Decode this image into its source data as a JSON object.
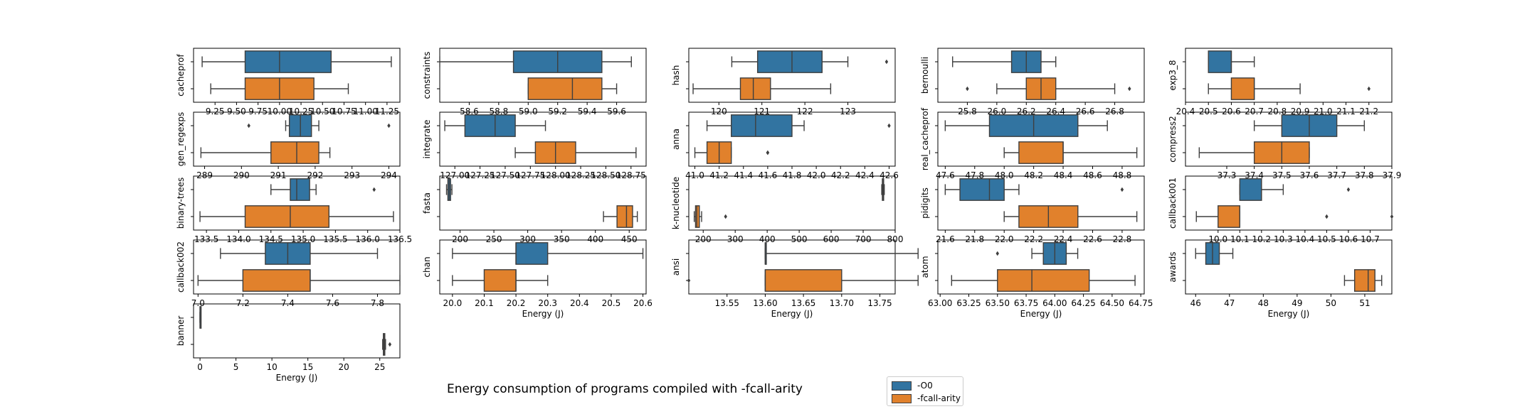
{
  "figure": {
    "title": "Energy consumption of programs compiled with -fcall-arity",
    "legend": [
      {
        "label": "-O0",
        "color": "#3274a1"
      },
      {
        "label": "-fcall-arity",
        "color": "#e1812c"
      }
    ]
  },
  "chart_data": [
    {
      "type": "box",
      "ylabel": "cacheprof",
      "xlabel": "",
      "xlim": [
        9.0,
        11.4
      ],
      "ticks": [
        "9.25",
        "9.50",
        "9.75",
        "10.00",
        "10.25",
        "10.50",
        "10.75",
        "11.00",
        "11.25"
      ],
      "tickvals": [
        9.25,
        9.5,
        9.75,
        10.0,
        10.25,
        10.5,
        10.75,
        11.0,
        11.25
      ],
      "series": [
        {
          "name": "-O0",
          "whislo": 9.1,
          "q1": 9.6,
          "med": 10.0,
          "q3": 10.6,
          "whishi": 11.3,
          "fliers": []
        },
        {
          "name": "-fcall-arity",
          "whislo": 9.2,
          "q1": 9.6,
          "med": 10.0,
          "q3": 10.4,
          "whishi": 10.8,
          "fliers": []
        }
      ]
    },
    {
      "type": "box",
      "ylabel": "constraints",
      "xlabel": "",
      "xlim": [
        58.4,
        59.8
      ],
      "ticks": [
        "58.6",
        "58.8",
        "59.0",
        "59.2",
        "59.4",
        "59.6"
      ],
      "tickvals": [
        58.6,
        58.8,
        59.0,
        59.2,
        59.4,
        59.6
      ],
      "series": [
        {
          "name": "-O0",
          "whislo": 58.4,
          "q1": 58.9,
          "med": 59.2,
          "q3": 59.5,
          "whishi": 59.7,
          "fliers": []
        },
        {
          "name": "-fcall-arity",
          "whislo": 59.0,
          "q1": 59.0,
          "med": 59.3,
          "q3": 59.5,
          "whishi": 59.6,
          "fliers": []
        }
      ]
    },
    {
      "type": "box",
      "ylabel": "hash",
      "xlabel": "",
      "xlim": [
        119.3,
        124.1
      ],
      "ticks": [
        "120",
        "121",
        "122",
        "123"
      ],
      "tickvals": [
        120,
        121,
        122,
        123
      ],
      "series": [
        {
          "name": "-O0",
          "whislo": 120.3,
          "q1": 120.9,
          "med": 121.7,
          "q3": 122.4,
          "whishi": 123.0,
          "fliers": [
            123.9
          ]
        },
        {
          "name": "-fcall-arity",
          "whislo": 119.4,
          "q1": 120.5,
          "med": 120.8,
          "q3": 121.2,
          "whishi": 122.6,
          "fliers": []
        }
      ]
    },
    {
      "type": "box",
      "ylabel": "bernoulli",
      "xlabel": "",
      "xlim": [
        25.6,
        27.0
      ],
      "ticks": [
        "25.8",
        "26.0",
        "26.2",
        "26.4",
        "26.6",
        "26.8"
      ],
      "tickvals": [
        25.8,
        26.0,
        26.2,
        26.4,
        26.6,
        26.8
      ],
      "series": [
        {
          "name": "-O0",
          "whislo": 25.7,
          "q1": 26.1,
          "med": 26.2,
          "q3": 26.3,
          "whishi": 26.4,
          "fliers": []
        },
        {
          "name": "-fcall-arity",
          "whislo": 26.0,
          "q1": 26.2,
          "med": 26.3,
          "q3": 26.4,
          "whishi": 26.8,
          "fliers": [
            25.8,
            26.9
          ]
        }
      ]
    },
    {
      "type": "box",
      "ylabel": "exp3_8",
      "xlabel": "",
      "xlim": [
        20.4,
        21.3
      ],
      "ticks": [
        "20.4",
        "20.5",
        "20.6",
        "20.7",
        "20.8",
        "20.9",
        "21.0",
        "21.1",
        "21.2"
      ],
      "tickvals": [
        20.4,
        20.5,
        20.6,
        20.7,
        20.8,
        20.9,
        21.0,
        21.1,
        21.2
      ],
      "series": [
        {
          "name": "-O0",
          "whislo": 20.5,
          "q1": 20.5,
          "med": 20.6,
          "q3": 20.6,
          "whishi": 20.7,
          "fliers": []
        },
        {
          "name": "-fcall-arity",
          "whislo": 20.5,
          "q1": 20.6,
          "med": 20.7,
          "q3": 20.7,
          "whishi": 20.9,
          "fliers": [
            21.2
          ]
        }
      ]
    },
    {
      "type": "box",
      "ylabel": "gen_regexps",
      "xlabel": "",
      "xlim": [
        288.7,
        294.3
      ],
      "ticks": [
        "289",
        "290",
        "291",
        "292",
        "293",
        "294"
      ],
      "tickvals": [
        289,
        290,
        291,
        292,
        293,
        294
      ],
      "series": [
        {
          "name": "-O0",
          "whislo": 291.2,
          "q1": 291.3,
          "med": 291.6,
          "q3": 291.9,
          "whishi": 292.1,
          "fliers": [
            290.2,
            294.0
          ]
        },
        {
          "name": "-fcall-arity",
          "whislo": 288.9,
          "q1": 290.8,
          "med": 291.5,
          "q3": 292.1,
          "whishi": 292.4,
          "fliers": []
        }
      ]
    },
    {
      "type": "box",
      "ylabel": "integrate",
      "xlabel": "",
      "xlim": [
        126.85,
        128.9
      ],
      "ticks": [
        "127.00",
        "127.25",
        "127.50",
        "127.75",
        "128.00",
        "128.25",
        "128.50",
        "128.75"
      ],
      "tickvals": [
        127.0,
        127.25,
        127.5,
        127.75,
        128.0,
        128.25,
        128.5,
        128.75
      ],
      "series": [
        {
          "name": "-O0",
          "whislo": 126.9,
          "q1": 127.1,
          "med": 127.4,
          "q3": 127.6,
          "whishi": 127.9,
          "fliers": []
        },
        {
          "name": "-fcall-arity",
          "whislo": 127.6,
          "q1": 127.8,
          "med": 128.0,
          "q3": 128.2,
          "whishi": 128.8,
          "fliers": []
        }
      ]
    },
    {
      "type": "box",
      "ylabel": "anna",
      "xlabel": "",
      "xlim": [
        40.95,
        42.65
      ],
      "ticks": [
        "41.0",
        "41.2",
        "41.4",
        "41.6",
        "41.8",
        "42.0",
        "42.2",
        "42.4",
        "42.6"
      ],
      "tickvals": [
        41.0,
        41.2,
        41.4,
        41.6,
        41.8,
        42.0,
        42.2,
        42.4,
        42.6
      ],
      "series": [
        {
          "name": "-O0",
          "whislo": 41.1,
          "q1": 41.3,
          "med": 41.5,
          "q3": 41.8,
          "whishi": 41.9,
          "fliers": [
            42.6
          ]
        },
        {
          "name": "-fcall-arity",
          "whislo": 41.0,
          "q1": 41.1,
          "med": 41.2,
          "q3": 41.3,
          "whishi": 41.3,
          "fliers": [
            41.6,
            41.6
          ]
        }
      ]
    },
    {
      "type": "box",
      "ylabel": "real_cacheprof",
      "xlabel": "",
      "xlim": [
        47.55,
        48.95
      ],
      "ticks": [
        "47.6",
        "47.8",
        "48.0",
        "48.2",
        "48.4",
        "48.6",
        "48.8"
      ],
      "tickvals": [
        47.6,
        47.8,
        48.0,
        48.2,
        48.4,
        48.6,
        48.8
      ],
      "series": [
        {
          "name": "-O0",
          "whislo": 47.6,
          "q1": 47.9,
          "med": 48.2,
          "q3": 48.5,
          "whishi": 48.7,
          "fliers": []
        },
        {
          "name": "-fcall-arity",
          "whislo": 48.0,
          "q1": 48.1,
          "med": 48.4,
          "q3": 48.4,
          "whishi": 48.9,
          "fliers": []
        }
      ]
    },
    {
      "type": "box",
      "ylabel": "compress2",
      "xlabel": "",
      "xlim": [
        37.15,
        37.9
      ],
      "ticks": [
        "37.3",
        "37.4",
        "37.5",
        "37.6",
        "37.7",
        "37.8",
        "37.9"
      ],
      "tickvals": [
        37.3,
        37.4,
        37.5,
        37.6,
        37.7,
        37.8,
        37.9
      ],
      "series": [
        {
          "name": "-O0",
          "whislo": 37.4,
          "q1": 37.5,
          "med": 37.6,
          "q3": 37.7,
          "whishi": 37.8,
          "fliers": []
        },
        {
          "name": "-fcall-arity",
          "whislo": 37.2,
          "q1": 37.4,
          "med": 37.5,
          "q3": 37.6,
          "whishi": 37.6,
          "fliers": []
        }
      ]
    },
    {
      "type": "box",
      "ylabel": "binary-trees",
      "xlabel": "",
      "xlim": [
        133.3,
        136.5
      ],
      "ticks": [
        "133.5",
        "134.0",
        "134.5",
        "135.0",
        "135.5",
        "136.0",
        "136.5"
      ],
      "tickvals": [
        133.5,
        134.0,
        134.5,
        135.0,
        135.5,
        136.0,
        136.5
      ],
      "series": [
        {
          "name": "-O0",
          "whislo": 134.5,
          "q1": 134.8,
          "med": 134.9,
          "q3": 135.1,
          "whishi": 135.2,
          "fliers": [
            136.1
          ]
        },
        {
          "name": "-fcall-arity",
          "whislo": 133.4,
          "q1": 134.1,
          "med": 134.8,
          "q3": 135.4,
          "whishi": 136.4,
          "fliers": []
        }
      ]
    },
    {
      "type": "box",
      "ylabel": "fasta",
      "xlabel": "",
      "xlim": [
        170,
        475
      ],
      "ticks": [
        "200",
        "250",
        "300",
        "350",
        "400",
        "450"
      ],
      "tickvals": [
        200,
        250,
        300,
        350,
        400,
        450
      ],
      "series": [
        {
          "name": "-O0",
          "whislo": 180,
          "q1": 182,
          "med": 184,
          "q3": 186,
          "whishi": 188,
          "fliers": []
        },
        {
          "name": "-fcall-arity",
          "whislo": 412,
          "q1": 432,
          "med": 446,
          "q3": 455,
          "whishi": 462,
          "fliers": []
        }
      ]
    },
    {
      "type": "box",
      "ylabel": "k-nucleotide",
      "xlabel": "",
      "xlim": [
        155,
        800
      ],
      "ticks": [
        "200",
        "300",
        "400",
        "500",
        "600",
        "700",
        "800"
      ],
      "tickvals": [
        200,
        300,
        400,
        500,
        600,
        700,
        800
      ],
      "series": [
        {
          "name": "-O0",
          "whislo": 758,
          "q1": 760,
          "med": 762,
          "q3": 764,
          "whishi": 766,
          "fliers": []
        },
        {
          "name": "-fcall-arity",
          "whislo": 172,
          "q1": 176,
          "med": 180,
          "q3": 188,
          "whishi": 195,
          "fliers": [
            270
          ]
        }
      ]
    },
    {
      "type": "box",
      "ylabel": "pidigits",
      "xlabel": "",
      "xlim": [
        21.55,
        22.95
      ],
      "ticks": [
        "21.6",
        "21.8",
        "22.0",
        "22.2",
        "22.4",
        "22.6",
        "22.8"
      ],
      "tickvals": [
        21.6,
        21.8,
        22.0,
        22.2,
        22.4,
        22.6,
        22.8
      ],
      "series": [
        {
          "name": "-O0",
          "whislo": 21.6,
          "q1": 21.7,
          "med": 21.9,
          "q3": 22.0,
          "whishi": 22.1,
          "fliers": [
            22.8
          ]
        },
        {
          "name": "-fcall-arity",
          "whislo": 22.0,
          "q1": 22.1,
          "med": 22.3,
          "q3": 22.5,
          "whishi": 22.9,
          "fliers": []
        }
      ]
    },
    {
      "type": "box",
      "ylabel": "callback001",
      "xlabel": "",
      "xlim": [
        9.85,
        10.8
      ],
      "ticks": [
        "10.0",
        "10.1",
        "10.2",
        "10.3",
        "10.4",
        "10.5",
        "10.6",
        "10.7"
      ],
      "tickvals": [
        10.0,
        10.1,
        10.2,
        10.3,
        10.4,
        10.5,
        10.6,
        10.7
      ],
      "series": [
        {
          "name": "-O0",
          "whislo": 10.1,
          "q1": 10.1,
          "med": 10.2,
          "q3": 10.2,
          "whishi": 10.3,
          "fliers": [
            10.6
          ]
        },
        {
          "name": "-fcall-arity",
          "whislo": 9.9,
          "q1": 10.0,
          "med": 10.1,
          "q3": 10.1,
          "whishi": 10.1,
          "fliers": [
            10.5,
            10.8
          ]
        }
      ]
    },
    {
      "type": "box",
      "ylabel": "callback002",
      "xlabel": "",
      "xlim": [
        6.98,
        7.9
      ],
      "ticks": [
        "7.0",
        "7.2",
        "7.4",
        "7.6",
        "7.8"
      ],
      "tickvals": [
        7.0,
        7.2,
        7.4,
        7.6,
        7.8
      ],
      "series": [
        {
          "name": "-O0",
          "whislo": 7.1,
          "q1": 7.3,
          "med": 7.4,
          "q3": 7.5,
          "whishi": 7.8,
          "fliers": []
        },
        {
          "name": "-fcall-arity",
          "whislo": 7.0,
          "q1": 7.2,
          "med": 7.5,
          "q3": 7.5,
          "whishi": 7.9,
          "fliers": []
        }
      ]
    },
    {
      "type": "box",
      "ylabel": "chan",
      "xlabel": "Energy (J)",
      "xlim": [
        19.96,
        20.61
      ],
      "ticks": [
        "20.0",
        "20.1",
        "20.2",
        "20.3",
        "20.4",
        "20.5",
        "20.6"
      ],
      "tickvals": [
        20.0,
        20.1,
        20.2,
        20.3,
        20.4,
        20.5,
        20.6
      ],
      "series": [
        {
          "name": "-O0",
          "whislo": 20.0,
          "q1": 20.2,
          "med": 20.2,
          "q3": 20.3,
          "whishi": 20.6,
          "fliers": []
        },
        {
          "name": "-fcall-arity",
          "whislo": 20.0,
          "q1": 20.1,
          "med": 20.2,
          "q3": 20.2,
          "whishi": 20.3,
          "fliers": []
        }
      ]
    },
    {
      "type": "box",
      "ylabel": "ansi",
      "xlabel": "Energy (J)",
      "xlim": [
        13.5,
        13.77
      ],
      "ticks": [
        "13.55",
        "13.60",
        "13.65",
        "13.70",
        "13.75"
      ],
      "tickvals": [
        13.55,
        13.6,
        13.65,
        13.7,
        13.75
      ],
      "series": [
        {
          "name": "-O0",
          "whislo": 13.6,
          "q1": 13.6,
          "med": 13.6,
          "q3": 13.6,
          "whishi": 13.8,
          "fliers": []
        },
        {
          "name": "-fcall-arity",
          "whislo": 13.6,
          "q1": 13.6,
          "med": 13.6,
          "q3": 13.7,
          "whishi": 13.8,
          "fliers": [
            13.5
          ]
        }
      ]
    },
    {
      "type": "box",
      "ylabel": "atom",
      "xlabel": "Energy (J)",
      "xlim": [
        62.98,
        64.78
      ],
      "ticks": [
        "63.00",
        "63.25",
        "63.50",
        "63.75",
        "64.00",
        "64.25",
        "64.50",
        "64.75"
      ],
      "tickvals": [
        63.0,
        63.25,
        63.5,
        63.75,
        64.0,
        64.25,
        64.5,
        64.75
      ],
      "series": [
        {
          "name": "-O0",
          "whislo": 63.8,
          "q1": 63.9,
          "med": 64.0,
          "q3": 64.1,
          "whishi": 64.2,
          "fliers": [
            63.5
          ]
        },
        {
          "name": "-fcall-arity",
          "whislo": 63.1,
          "q1": 63.5,
          "med": 63.8,
          "q3": 64.3,
          "whishi": 64.7,
          "fliers": []
        }
      ]
    },
    {
      "type": "box",
      "ylabel": "awards",
      "xlabel": "Energy (J)",
      "xlim": [
        45.7,
        51.8
      ],
      "ticks": [
        "46",
        "47",
        "48",
        "49",
        "50",
        "51"
      ],
      "tickvals": [
        46,
        47,
        48,
        49,
        50,
        51
      ],
      "series": [
        {
          "name": "-O0",
          "whislo": 46.0,
          "q1": 46.3,
          "med": 46.5,
          "q3": 46.7,
          "whishi": 47.1,
          "fliers": []
        },
        {
          "name": "-fcall-arity",
          "whislo": 50.4,
          "q1": 50.7,
          "med": 51.1,
          "q3": 51.3,
          "whishi": 51.5,
          "fliers": []
        }
      ]
    },
    {
      "type": "box",
      "ylabel": "banner",
      "xlabel": "Energy (J)",
      "xlim": [
        -0.9,
        27.8
      ],
      "ticks": [
        "0",
        "5",
        "10",
        "15",
        "20",
        "25"
      ],
      "tickvals": [
        0,
        5,
        10,
        15,
        20,
        25
      ],
      "series": [
        {
          "name": "-O0",
          "whislo": 0.0,
          "q1": 0.0,
          "med": 0.0,
          "q3": 0.0,
          "whishi": 0.0,
          "fliers": []
        },
        {
          "name": "-fcall-arity",
          "whislo": 25.4,
          "q1": 25.5,
          "med": 25.6,
          "q3": 25.7,
          "whishi": 25.8,
          "fliers": [
            26.4
          ]
        }
      ]
    }
  ]
}
